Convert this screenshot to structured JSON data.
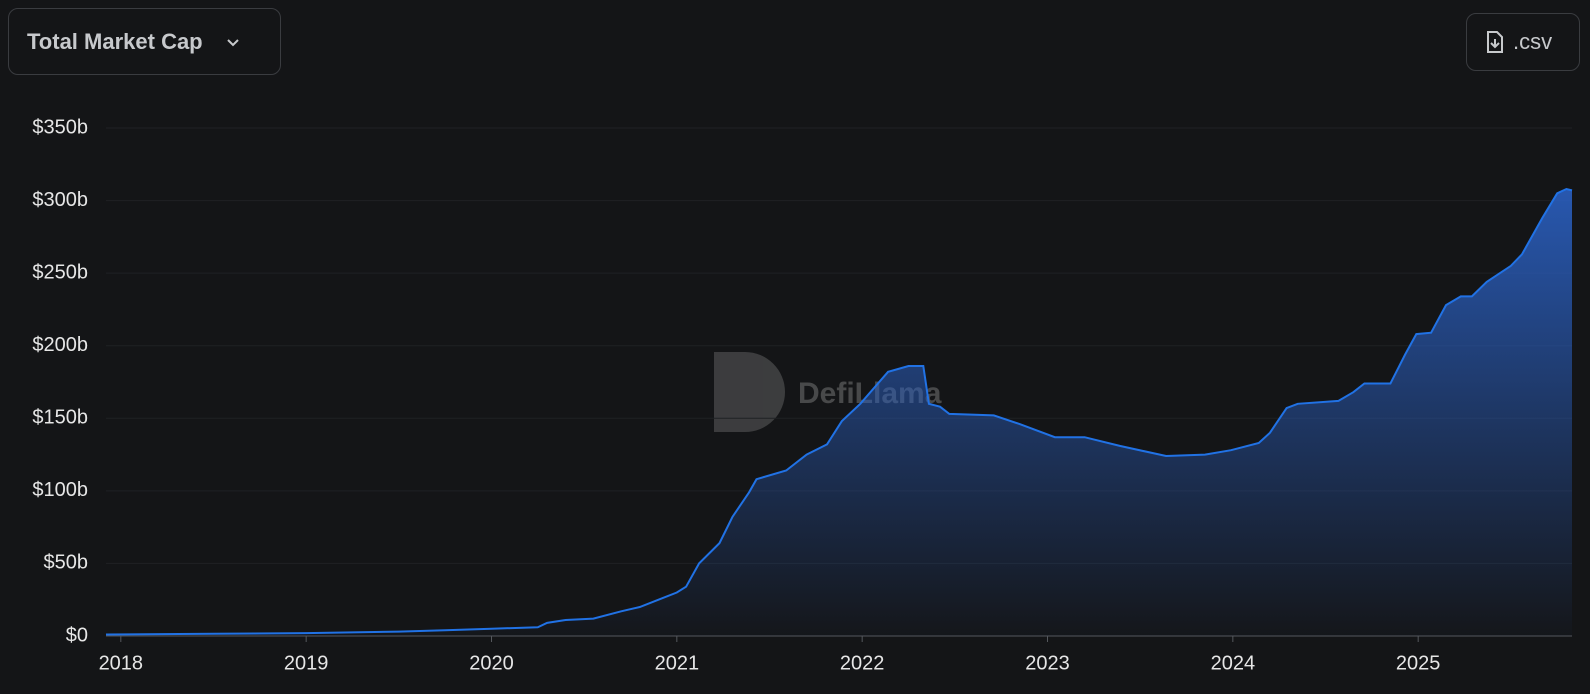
{
  "ui": {
    "dropdown": "Total Market Cap",
    "download": ".csv",
    "watermark": "DefiLlama"
  },
  "chart_data": {
    "type": "area",
    "color": "#2172e5",
    "grid": true,
    "x": [
      2017.92,
      2018.5,
      2019.0,
      2019.5,
      2019.75,
      2020.0,
      2020.25,
      2020.3,
      2020.4,
      2020.55,
      2020.7,
      2020.8,
      2020.92,
      2021.0,
      2021.05,
      2021.12,
      2021.23,
      2021.3,
      2021.39,
      2021.43,
      2021.59,
      2021.7,
      2021.81,
      2021.89,
      2021.99,
      2022.14,
      2022.25,
      2022.33,
      2022.36,
      2022.42,
      2022.47,
      2022.71,
      2022.85,
      2023.04,
      2023.2,
      2023.39,
      2023.64,
      2023.85,
      2023.99,
      2024.14,
      2024.2,
      2024.29,
      2024.35,
      2024.57,
      2024.65,
      2024.71,
      2024.85,
      2024.93,
      2024.99,
      2025.07,
      2025.15,
      2025.23,
      2025.29,
      2025.37,
      2025.5,
      2025.56,
      2025.67,
      2025.75,
      2025.8,
      2025.83
    ],
    "values": [
      1,
      1.5,
      2,
      3,
      4,
      5,
      6,
      9,
      11,
      12,
      17,
      20,
      26,
      30,
      34,
      50,
      64,
      82,
      99,
      108,
      114,
      125,
      132,
      148,
      160,
      182,
      186,
      186,
      160,
      158,
      153,
      152,
      146,
      137,
      137,
      131,
      124,
      125,
      128,
      133,
      140,
      157,
      160,
      162,
      168,
      174,
      174,
      194,
      208,
      209,
      228,
      234,
      234,
      244,
      255,
      263,
      288,
      305,
      308,
      307
    ],
    "xlim": [
      2017.92,
      2025.83
    ],
    "xticks": [
      2018,
      2019,
      2020,
      2021,
      2022,
      2023,
      2024,
      2025
    ],
    "ylim": [
      0,
      350
    ],
    "yticks": [
      {
        "value": 0,
        "label": "$0"
      },
      {
        "value": 50,
        "label": "$50b"
      },
      {
        "value": 100,
        "label": "$100b"
      },
      {
        "value": 150,
        "label": "$150b"
      },
      {
        "value": 200,
        "label": "$200b"
      },
      {
        "value": 250,
        "label": "$250b"
      },
      {
        "value": 300,
        "label": "$300b"
      },
      {
        "value": 350,
        "label": "$350b"
      }
    ]
  }
}
